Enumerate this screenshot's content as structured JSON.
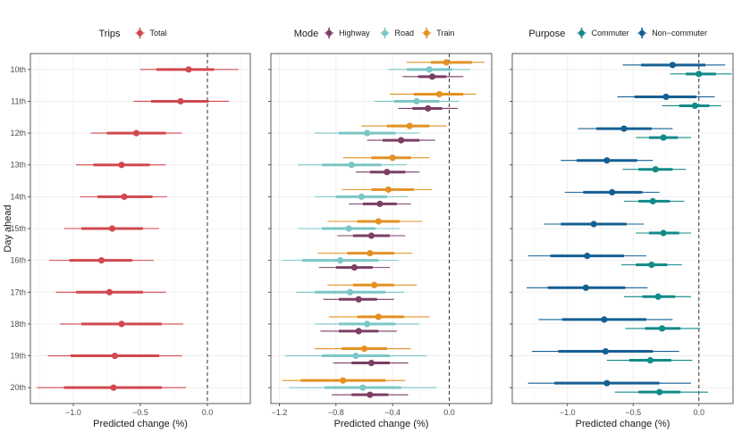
{
  "chart_data": {
    "type": "forest",
    "y_axis_label": "Day ahead",
    "categories": [
      "10th",
      "11th",
      "12th",
      "13th",
      "14th",
      "15th",
      "16th",
      "17th",
      "18th",
      "19th",
      "20th"
    ],
    "colors": {
      "Total": "#d1494e",
      "Highway": "#7c3f64",
      "Road": "#7cc6c6",
      "Train": "#e39124",
      "Commuter": "#138a8a",
      "Non-commuter": "#155f93"
    },
    "panels": [
      {
        "legend_title": "Trips",
        "xlabel": "Predicted change (%)",
        "xlim": [
          -1.32,
          0.32
        ],
        "ticks": [
          -1.0,
          -0.5,
          0.0
        ],
        "tick_labels": [
          "−1.0",
          "−0.5",
          "0.0"
        ],
        "series": [
          {
            "name": "Total",
            "label": "Total",
            "estimate": [
              -0.14,
              -0.2,
              -0.53,
              -0.64,
              -0.62,
              -0.71,
              -0.79,
              -0.73,
              -0.64,
              -0.69,
              -0.7
            ],
            "ci_inner": [
              [
                -0.38,
                0.05
              ],
              [
                -0.42,
                0.01
              ],
              [
                -0.75,
                -0.31
              ],
              [
                -0.85,
                -0.43
              ],
              [
                -0.82,
                -0.41
              ],
              [
                -0.94,
                -0.48
              ],
              [
                -1.03,
                -0.56
              ],
              [
                -0.98,
                -0.48
              ],
              [
                -0.94,
                -0.34
              ],
              [
                -1.02,
                -0.36
              ],
              [
                -1.07,
                -0.34
              ]
            ],
            "ci_outer": [
              [
                -0.5,
                0.23
              ],
              [
                -0.55,
                0.16
              ],
              [
                -0.87,
                -0.19
              ],
              [
                -0.98,
                -0.31
              ],
              [
                -0.95,
                -0.3
              ],
              [
                -1.07,
                -0.36
              ],
              [
                -1.18,
                -0.4
              ],
              [
                -1.13,
                -0.31
              ],
              [
                -1.1,
                -0.18
              ],
              [
                -1.19,
                -0.19
              ],
              [
                -1.27,
                -0.16
              ]
            ]
          }
        ]
      },
      {
        "legend_title": "Mode",
        "xlabel": "Predicted change (%)",
        "xlim": [
          -1.26,
          0.3
        ],
        "ticks": [
          -1.2,
          -0.8,
          -0.4,
          0.0
        ],
        "tick_labels": [
          "−1.2",
          "−0.8",
          "−0.4",
          "0.0"
        ],
        "series": [
          {
            "name": "Highway",
            "label": "Highway",
            "estimate": [
              -0.12,
              -0.15,
              -0.34,
              -0.44,
              -0.49,
              -0.55,
              -0.67,
              -0.64,
              -0.64,
              -0.55,
              -0.56
            ],
            "ci_inner": [
              [
                -0.22,
                -0.02
              ],
              [
                -0.26,
                -0.05
              ],
              [
                -0.47,
                -0.21
              ],
              [
                -0.56,
                -0.31
              ],
              [
                -0.61,
                -0.37
              ],
              [
                -0.68,
                -0.42
              ],
              [
                -0.8,
                -0.54
              ],
              [
                -0.78,
                -0.51
              ],
              [
                -0.78,
                -0.5
              ],
              [
                -0.69,
                -0.42
              ],
              [
                -0.69,
                -0.43
              ]
            ],
            "ci_outer": [
              [
                -0.33,
                0.1
              ],
              [
                -0.36,
                0.06
              ],
              [
                -0.58,
                -0.1
              ],
              [
                -0.66,
                -0.21
              ],
              [
                -0.71,
                -0.27
              ],
              [
                -0.79,
                -0.31
              ],
              [
                -0.92,
                -0.42
              ],
              [
                -0.89,
                -0.39
              ],
              [
                -0.91,
                -0.37
              ],
              [
                -0.82,
                -0.29
              ],
              [
                -0.83,
                -0.29
              ]
            ]
          },
          {
            "name": "Road",
            "label": "Road",
            "estimate": [
              -0.14,
              -0.23,
              -0.58,
              -0.69,
              -0.62,
              -0.71,
              -0.77,
              -0.7,
              -0.58,
              -0.66,
              -0.61
            ],
            "ci_inner": [
              [
                -0.3,
                0.02
              ],
              [
                -0.39,
                -0.07
              ],
              [
                -0.78,
                -0.38
              ],
              [
                -0.9,
                -0.48
              ],
              [
                -0.8,
                -0.44
              ],
              [
                -0.9,
                -0.52
              ],
              [
                -1.04,
                -0.5
              ],
              [
                -0.95,
                -0.45
              ],
              [
                -0.78,
                -0.38
              ],
              [
                -0.9,
                -0.42
              ],
              [
                -0.88,
                -0.34
              ]
            ],
            "ci_outer": [
              [
                -0.43,
                0.15
              ],
              [
                -0.53,
                0.07
              ],
              [
                -0.95,
                -0.21
              ],
              [
                -1.07,
                -0.3
              ],
              [
                -0.95,
                -0.29
              ],
              [
                -1.07,
                -0.35
              ],
              [
                -1.18,
                -0.36
              ],
              [
                -1.08,
                -0.32
              ],
              [
                -0.95,
                -0.21
              ],
              [
                -1.16,
                -0.16
              ],
              [
                -1.13,
                -0.09
              ]
            ]
          },
          {
            "name": "Train",
            "label": "Train",
            "estimate": [
              -0.02,
              -0.07,
              -0.28,
              -0.4,
              -0.43,
              -0.5,
              -0.56,
              -0.53,
              -0.5,
              -0.6,
              -0.75
            ],
            "ci_inner": [
              [
                -0.13,
                0.16
              ],
              [
                -0.25,
                0.1
              ],
              [
                -0.44,
                -0.14
              ],
              [
                -0.55,
                -0.27
              ],
              [
                -0.55,
                -0.25
              ],
              [
                -0.65,
                -0.35
              ],
              [
                -0.72,
                -0.39
              ],
              [
                -0.68,
                -0.39
              ],
              [
                -0.65,
                -0.32
              ],
              [
                -0.76,
                -0.44
              ],
              [
                -1.05,
                -0.45
              ]
            ],
            "ci_outer": [
              [
                -0.3,
                0.25
              ],
              [
                -0.42,
                0.19
              ],
              [
                -0.62,
                -0.02
              ],
              [
                -0.75,
                -0.14
              ],
              [
                -0.76,
                -0.12
              ],
              [
                -0.86,
                -0.19
              ],
              [
                -0.93,
                -0.26
              ],
              [
                -0.86,
                -0.23
              ],
              [
                -0.85,
                -0.14
              ],
              [
                -0.95,
                -0.27
              ],
              [
                -1.18,
                -0.31
              ]
            ]
          }
        ]
      },
      {
        "legend_title": "Purpose",
        "xlabel": "Predicted change (%)",
        "xlim": [
          -1.42,
          0.26
        ],
        "ticks": [
          -1.0,
          -0.5,
          0.0
        ],
        "tick_labels": [
          "−1.0",
          "−0.5",
          "0.0"
        ],
        "series": [
          {
            "name": "Commuter",
            "label": "Commuter",
            "estimate": [
              0.0,
              -0.03,
              -0.27,
              -0.33,
              -0.35,
              -0.27,
              -0.36,
              -0.31,
              -0.28,
              -0.37,
              -0.3
            ],
            "ci_inner": [
              [
                -0.1,
                0.13
              ],
              [
                -0.15,
                0.08
              ],
              [
                -0.38,
                -0.16
              ],
              [
                -0.46,
                -0.2
              ],
              [
                -0.46,
                -0.22
              ],
              [
                -0.38,
                -0.15
              ],
              [
                -0.48,
                -0.24
              ],
              [
                -0.43,
                -0.18
              ],
              [
                -0.41,
                -0.14
              ],
              [
                -0.53,
                -0.21
              ],
              [
                -0.46,
                -0.14
              ]
            ],
            "ci_outer": [
              [
                -0.22,
                0.25
              ],
              [
                -0.28,
                0.17
              ],
              [
                -0.48,
                -0.06
              ],
              [
                -0.58,
                -0.1
              ],
              [
                -0.57,
                -0.11
              ],
              [
                -0.48,
                -0.06
              ],
              [
                -0.59,
                -0.13
              ],
              [
                -0.57,
                -0.06
              ],
              [
                -0.56,
                0.01
              ],
              [
                -0.7,
                -0.05
              ],
              [
                -0.64,
                0.07
              ]
            ]
          },
          {
            "name": "Non-commuter",
            "label": "Non−commuter",
            "estimate": [
              -0.2,
              -0.25,
              -0.57,
              -0.7,
              -0.66,
              -0.8,
              -0.85,
              -0.86,
              -0.72,
              -0.71,
              -0.7
            ],
            "ci_inner": [
              [
                -0.44,
                0.05
              ],
              [
                -0.49,
                -0.02
              ],
              [
                -0.78,
                -0.36
              ],
              [
                -0.93,
                -0.47
              ],
              [
                -0.88,
                -0.43
              ],
              [
                -1.05,
                -0.55
              ],
              [
                -1.13,
                -0.57
              ],
              [
                -1.15,
                -0.56
              ],
              [
                -1.04,
                -0.4
              ],
              [
                -1.07,
                -0.35
              ],
              [
                -1.1,
                -0.3
              ]
            ],
            "ci_outer": [
              [
                -0.58,
                0.2
              ],
              [
                -0.62,
                0.12
              ],
              [
                -0.92,
                -0.2
              ],
              [
                -1.05,
                -0.35
              ],
              [
                -1.02,
                -0.3
              ],
              [
                -1.18,
                -0.42
              ],
              [
                -1.3,
                -0.4
              ],
              [
                -1.31,
                -0.39
              ],
              [
                -1.22,
                -0.2
              ],
              [
                -1.27,
                -0.15
              ],
              [
                -1.3,
                -0.06
              ]
            ]
          }
        ]
      }
    ]
  }
}
